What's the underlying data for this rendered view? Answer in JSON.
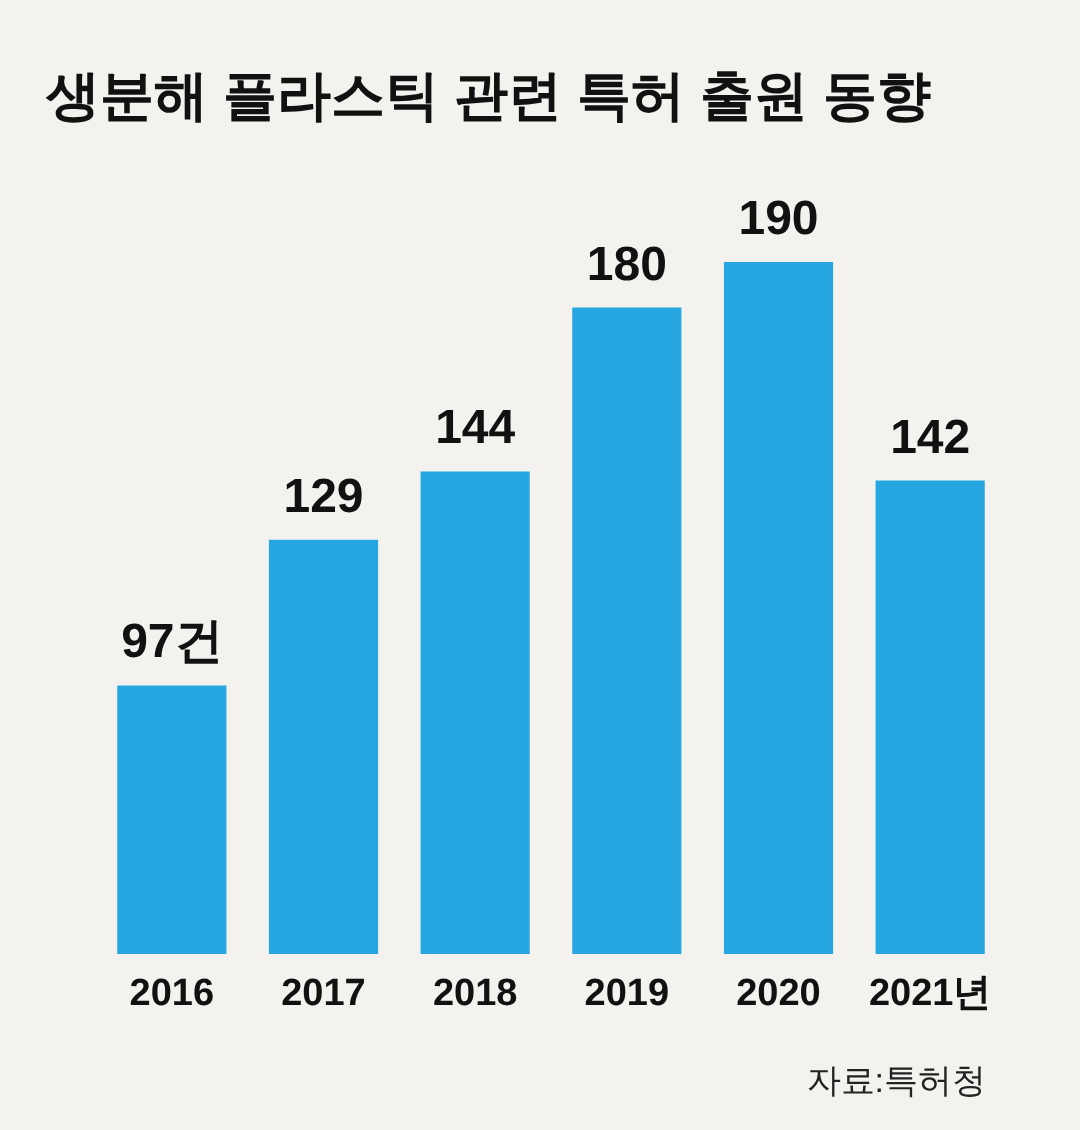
{
  "chart_data": {
    "type": "bar",
    "title": "생분해 플라스틱 관련 특허 출원 동향",
    "categories": [
      "2016",
      "2017",
      "2018",
      "2019",
      "2020",
      "2021년"
    ],
    "values": [
      97,
      129,
      144,
      180,
      190,
      142
    ],
    "color": "#27a7e1",
    "value_labels": [
      "97건",
      "129",
      "144",
      "180",
      "190",
      "142"
    ],
    "ylim": [
      38,
      190
    ],
    "tick_labels": "x",
    "annotations": [
      "자료:특허청"
    ]
  }
}
